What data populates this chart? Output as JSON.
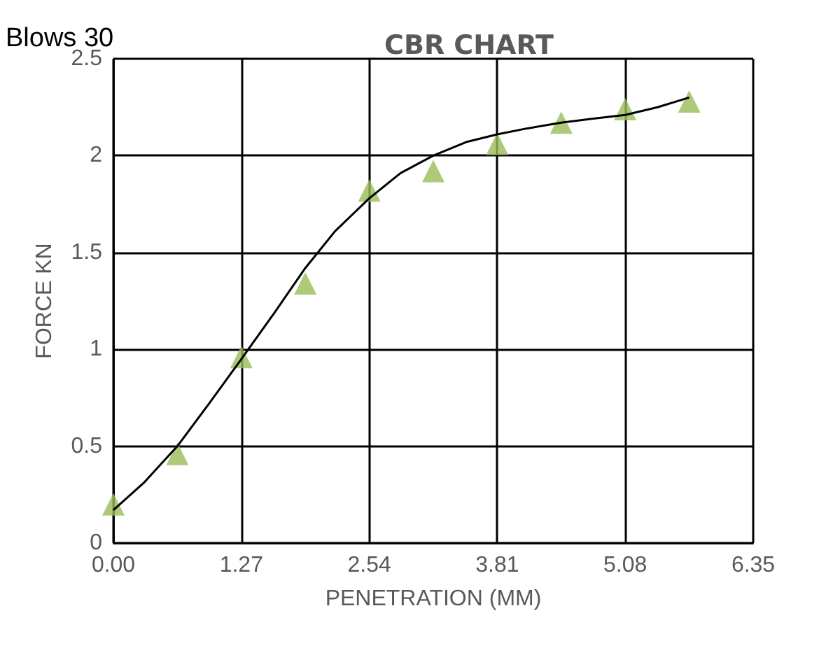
{
  "chart_data": {
    "type": "scatter",
    "title": "CBR CHART",
    "xlabel": "PENETRATION (MM)",
    "ylabel": "FORCE KN",
    "annotations": [
      "Blows 30"
    ],
    "xlim": [
      0,
      6.35
    ],
    "xticks": [
      {
        "value": 0,
        "label": "0.00"
      },
      {
        "value": 1.27,
        "label": "1.27"
      },
      {
        "value": 2.54,
        "label": "2.54"
      },
      {
        "value": 3.81,
        "label": "3.81"
      },
      {
        "value": 5.08,
        "label": "5.08"
      },
      {
        "value": 6.35,
        "label": "6.35"
      }
    ],
    "ylim": [
      0,
      2.5
    ],
    "yticks": [
      0,
      0.5,
      1,
      1.5,
      2,
      2.5
    ],
    "grid": true,
    "series": [
      {
        "marker": "triangle",
        "color": "#9bbb59",
        "x": [
          0,
          0.635,
          1.27,
          1.905,
          2.54,
          3.175,
          3.81,
          4.445,
          5.08,
          5.715
        ],
        "values": [
          0.2,
          0.46,
          0.96,
          1.34,
          1.82,
          1.92,
          2.06,
          2.17,
          2.24,
          2.28
        ]
      },
      {
        "type": "line",
        "marker": "none",
        "color": "#000000",
        "line_style": "solid",
        "x": [
          0,
          0.3,
          0.635,
          0.95,
          1.27,
          1.6,
          1.905,
          2.2,
          2.54,
          2.85,
          3.175,
          3.5,
          3.81,
          4.1,
          4.445,
          4.75,
          5.08,
          5.4,
          5.715
        ],
        "values": [
          0.17,
          0.31,
          0.5,
          0.72,
          0.95,
          1.19,
          1.42,
          1.61,
          1.78,
          1.91,
          2.0,
          2.07,
          2.11,
          2.14,
          2.17,
          2.19,
          2.21,
          2.25,
          2.3
        ]
      }
    ]
  }
}
